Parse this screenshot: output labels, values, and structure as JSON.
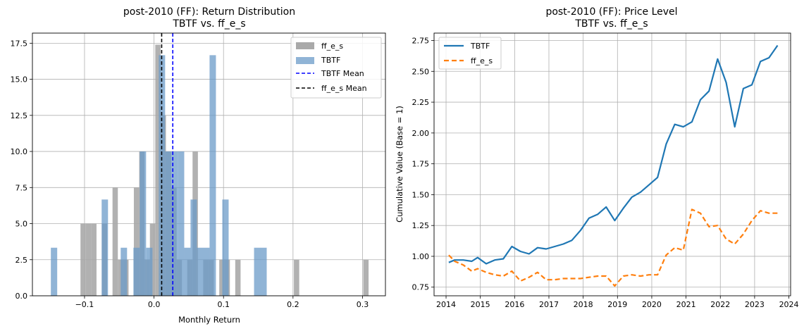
{
  "charts": [
    {
      "title_line1": "post-2010 (FF): Return Distribution",
      "title_line2": "TBTF vs. ff_e_s",
      "xlabel": "Monthly Return",
      "ylabel": "",
      "legend": {
        "ff": "ff_e_s",
        "tbtf": "TBTF",
        "tbtf_mean": "TBTF Mean",
        "ff_mean": "ff_e_s Mean"
      }
    },
    {
      "title_line1": "post-2010 (FF): Price Level",
      "title_line2": "TBTF vs. ff_e_s",
      "xlabel": "",
      "ylabel": "Cumulative Value (Base = 1)",
      "legend": {
        "tbtf": "TBTF",
        "ff": "ff_e_s"
      }
    }
  ],
  "chart_data": [
    {
      "type": "bar",
      "subtype": "overlaid-histogram-density",
      "x_range": [
        -0.175,
        0.333
      ],
      "ylim": [
        0,
        18.2
      ],
      "xticks": [
        -0.1,
        0.0,
        0.1,
        0.2,
        0.3
      ],
      "xtick_labels": [
        "−0.1",
        "0.0",
        "0.1",
        "0.2",
        "0.3"
      ],
      "yticks": [
        0,
        2.5,
        5,
        7.5,
        10,
        12.5,
        15,
        17.5
      ],
      "ytick_labels": [
        "0.0",
        "2.5",
        "5.0",
        "7.5",
        "10.0",
        "12.5",
        "15.0",
        "17.5"
      ],
      "grid": true,
      "legend_position": "top-right",
      "series": [
        {
          "name": "ff_e_s",
          "color": "#a9a9a9",
          "bin_width": 0.00768,
          "bins": [
            [
              -0.102,
              5.0
            ],
            [
              -0.0943,
              5.0
            ],
            [
              -0.0866,
              5.0
            ],
            [
              -0.0713,
              5.0
            ],
            [
              -0.0559,
              7.5
            ],
            [
              -0.0482,
              2.5
            ],
            [
              -0.0405,
              2.5
            ],
            [
              -0.0252,
              7.5
            ],
            [
              -0.0175,
              10.0
            ],
            [
              -0.0098,
              2.5
            ],
            [
              -0.0021,
              5.0
            ],
            [
              0.0056,
              17.4
            ],
            [
              0.0133,
              12.5
            ],
            [
              0.0209,
              10.0
            ],
            [
              0.0286,
              7.5
            ],
            [
              0.0363,
              2.5
            ],
            [
              0.0516,
              2.5
            ],
            [
              0.0593,
              10.0
            ],
            [
              0.0746,
              2.5
            ],
            [
              0.0823,
              2.5
            ],
            [
              0.0977,
              2.5
            ],
            [
              0.1053,
              2.5
            ],
            [
              0.1207,
              2.5
            ],
            [
              0.2051,
              2.5
            ],
            [
              0.3049,
              2.5
            ]
          ]
        },
        {
          "name": "TBTF",
          "color": "#6b9bc8",
          "bin_width": 0.00914,
          "bins": [
            [
              -0.1439,
              3.33
            ],
            [
              -0.0708,
              6.67
            ],
            [
              -0.0434,
              3.33
            ],
            [
              -0.0251,
              3.33
            ],
            [
              -0.016,
              10.0
            ],
            [
              -0.0068,
              3.33
            ],
            [
              0.0114,
              16.67
            ],
            [
              0.0206,
              10.0
            ],
            [
              0.0297,
              10.0
            ],
            [
              0.0389,
              10.0
            ],
            [
              0.048,
              3.33
            ],
            [
              0.0571,
              6.67
            ],
            [
              0.0663,
              3.33
            ],
            [
              0.0754,
              3.33
            ],
            [
              0.0845,
              16.67
            ],
            [
              0.1028,
              6.67
            ],
            [
              0.1485,
              3.33
            ],
            [
              0.1576,
              3.33
            ]
          ]
        }
      ],
      "mean_lines": [
        {
          "name": "TBTF Mean",
          "x": 0.027,
          "color": "#0000ff"
        },
        {
          "name": "ff_e_s Mean",
          "x": 0.011,
          "color": "#000000"
        }
      ]
    },
    {
      "type": "line",
      "xlim": [
        2013.65,
        2024.05
      ],
      "ylim": [
        0.68,
        2.81
      ],
      "xticks": [
        2014,
        2015,
        2016,
        2017,
        2018,
        2019,
        2020,
        2021,
        2022,
        2023,
        2024
      ],
      "xtick_labels": [
        "2014",
        "2015",
        "2016",
        "2017",
        "2018",
        "2019",
        "2020",
        "2021",
        "2022",
        "2023",
        "2024"
      ],
      "yticks": [
        0.75,
        1.0,
        1.25,
        1.5,
        1.75,
        2.0,
        2.25,
        2.5,
        2.75
      ],
      "ytick_labels": [
        "0.75",
        "1.00",
        "1.25",
        "1.50",
        "1.75",
        "2.00",
        "2.25",
        "2.50",
        "2.75"
      ],
      "grid": true,
      "legend_position": "top-left",
      "series": [
        {
          "name": "TBTF",
          "color": "#1f77b4",
          "style": "solid",
          "points": [
            [
              2014.08,
              0.95
            ],
            [
              2014.25,
              0.97
            ],
            [
              2014.5,
              0.97
            ],
            [
              2014.75,
              0.96
            ],
            [
              2014.92,
              0.99
            ],
            [
              2015.17,
              0.94
            ],
            [
              2015.42,
              0.97
            ],
            [
              2015.67,
              0.98
            ],
            [
              2015.92,
              1.08
            ],
            [
              2016.17,
              1.04
            ],
            [
              2016.42,
              1.02
            ],
            [
              2016.67,
              1.07
            ],
            [
              2016.92,
              1.06
            ],
            [
              2017.17,
              1.08
            ],
            [
              2017.42,
              1.1
            ],
            [
              2017.67,
              1.13
            ],
            [
              2017.92,
              1.21
            ],
            [
              2018.17,
              1.31
            ],
            [
              2018.42,
              1.34
            ],
            [
              2018.67,
              1.4
            ],
            [
              2018.92,
              1.29
            ],
            [
              2019.17,
              1.39
            ],
            [
              2019.42,
              1.48
            ],
            [
              2019.67,
              1.52
            ],
            [
              2019.92,
              1.58
            ],
            [
              2020.17,
              1.64
            ],
            [
              2020.42,
              1.91
            ],
            [
              2020.67,
              2.07
            ],
            [
              2020.92,
              2.05
            ],
            [
              2021.17,
              2.09
            ],
            [
              2021.42,
              2.27
            ],
            [
              2021.67,
              2.34
            ],
            [
              2021.92,
              2.6
            ],
            [
              2022.17,
              2.41
            ],
            [
              2022.42,
              2.05
            ],
            [
              2022.67,
              2.36
            ],
            [
              2022.92,
              2.39
            ],
            [
              2023.17,
              2.58
            ],
            [
              2023.42,
              2.61
            ],
            [
              2023.67,
              2.71
            ]
          ]
        },
        {
          "name": "ff_e_s",
          "color": "#ff7f0e",
          "style": "dashed",
          "points": [
            [
              2014.08,
              1.01
            ],
            [
              2014.25,
              0.96
            ],
            [
              2014.5,
              0.93
            ],
            [
              2014.75,
              0.88
            ],
            [
              2014.92,
              0.9
            ],
            [
              2015.17,
              0.87
            ],
            [
              2015.42,
              0.85
            ],
            [
              2015.67,
              0.84
            ],
            [
              2015.92,
              0.88
            ],
            [
              2016.17,
              0.8
            ],
            [
              2016.42,
              0.83
            ],
            [
              2016.67,
              0.87
            ],
            [
              2016.92,
              0.81
            ],
            [
              2017.17,
              0.81
            ],
            [
              2017.42,
              0.82
            ],
            [
              2017.67,
              0.82
            ],
            [
              2017.92,
              0.82
            ],
            [
              2018.17,
              0.83
            ],
            [
              2018.42,
              0.84
            ],
            [
              2018.67,
              0.84
            ],
            [
              2018.92,
              0.76
            ],
            [
              2019.17,
              0.84
            ],
            [
              2019.42,
              0.85
            ],
            [
              2019.67,
              0.84
            ],
            [
              2019.92,
              0.85
            ],
            [
              2020.17,
              0.85
            ],
            [
              2020.42,
              1.01
            ],
            [
              2020.67,
              1.07
            ],
            [
              2020.92,
              1.05
            ],
            [
              2021.17,
              1.38
            ],
            [
              2021.42,
              1.35
            ],
            [
              2021.67,
              1.24
            ],
            [
              2021.92,
              1.25
            ],
            [
              2022.17,
              1.14
            ],
            [
              2022.42,
              1.1
            ],
            [
              2022.67,
              1.18
            ],
            [
              2022.92,
              1.29
            ],
            [
              2023.17,
              1.37
            ],
            [
              2023.42,
              1.35
            ],
            [
              2023.67,
              1.35
            ]
          ]
        }
      ]
    }
  ]
}
